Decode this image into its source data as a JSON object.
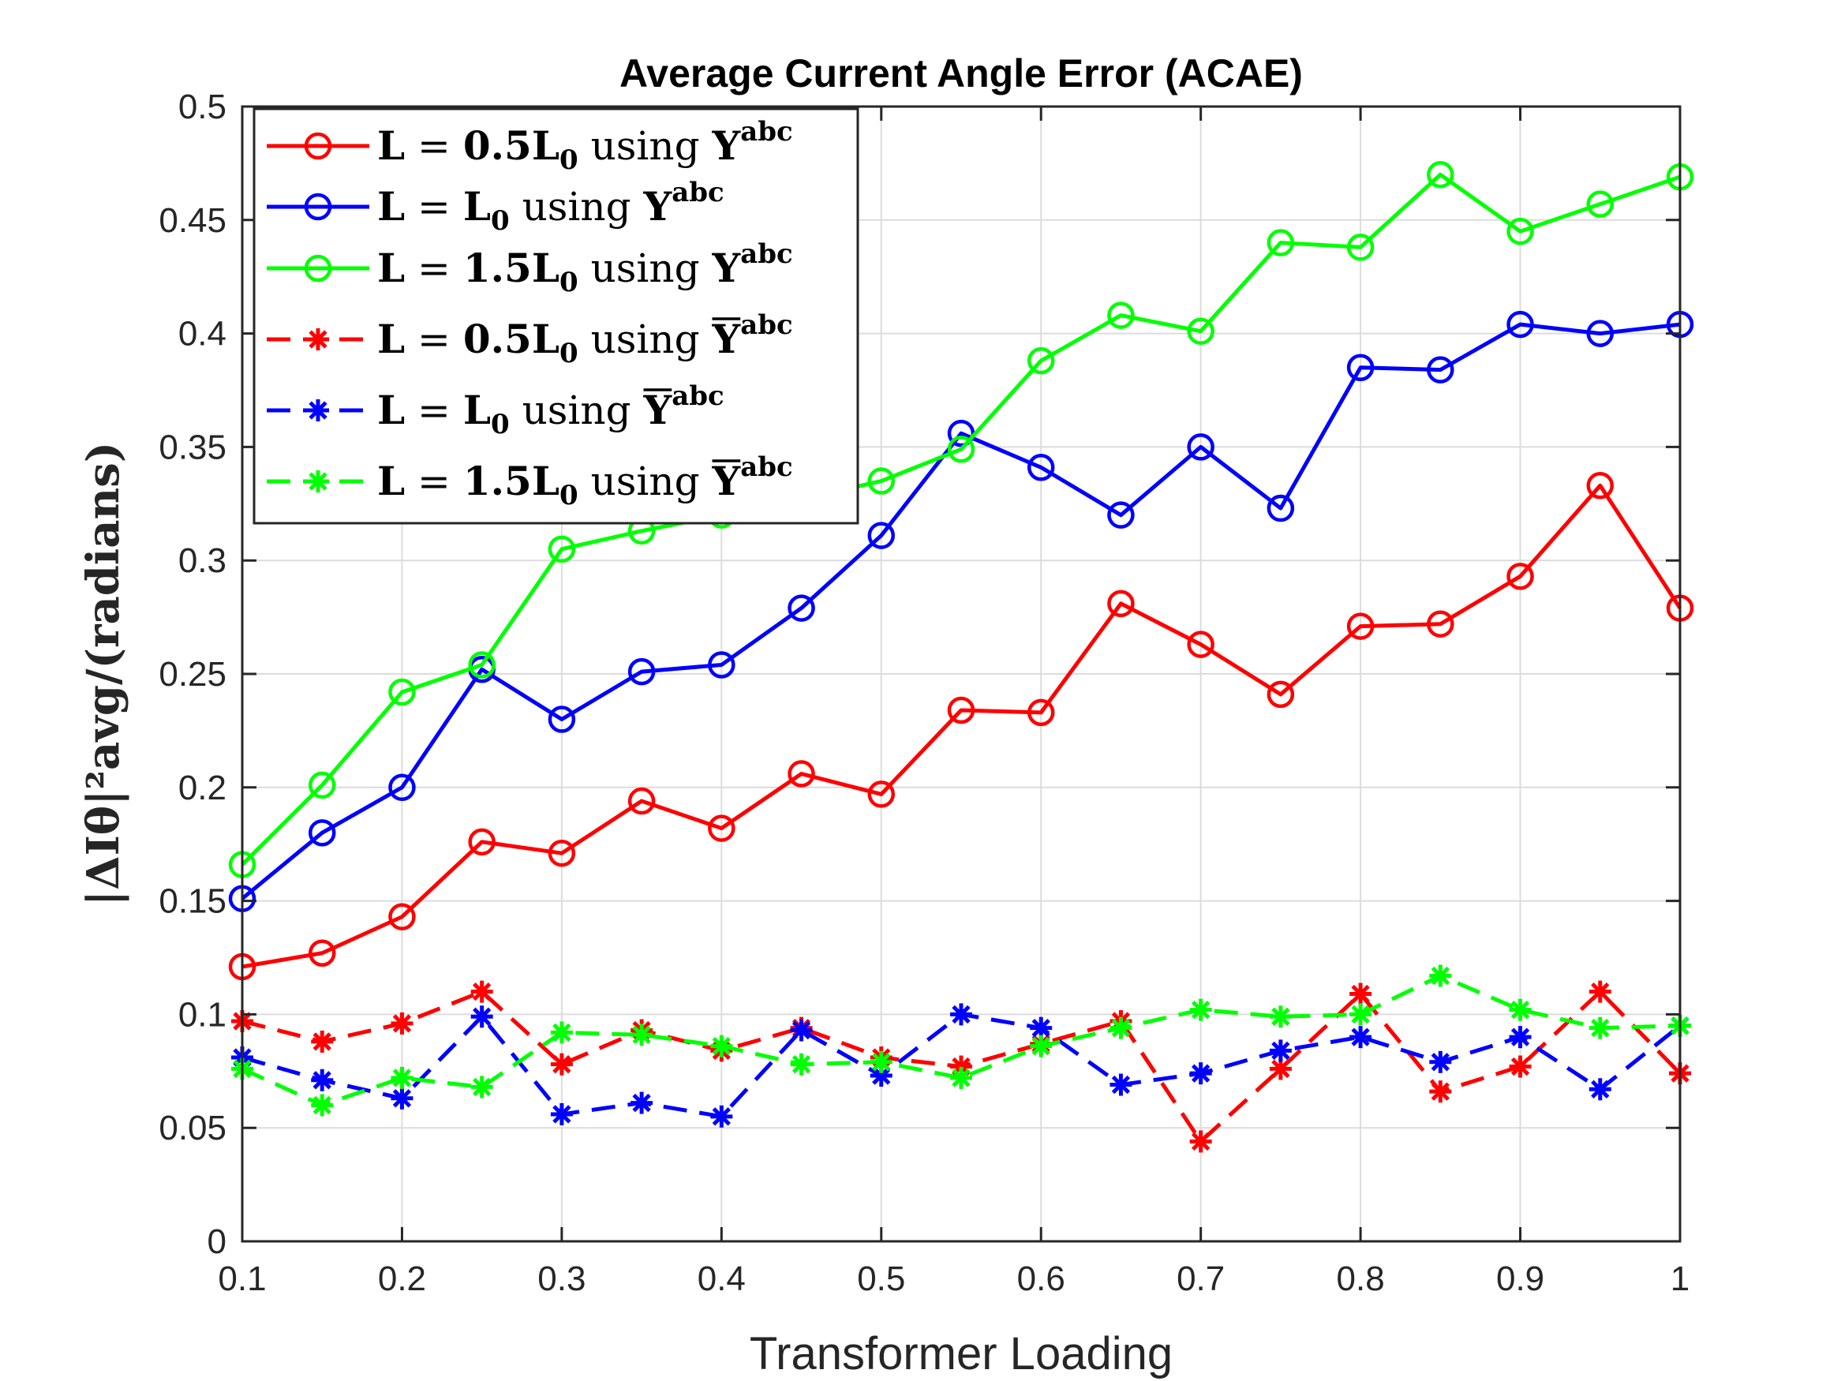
{
  "chart_data": {
    "type": "line",
    "title": "Average Current Angle Error (ACAE)",
    "xlabel": "Transformer Loading",
    "ylabel": "|ΔIθ|²avg/(radians)",
    "xlim": [
      0.1,
      1
    ],
    "ylim": [
      0,
      0.5
    ],
    "xticks": [
      "0.1",
      "0.2",
      "0.3",
      "0.4",
      "0.5",
      "0.6",
      "0.7",
      "0.8",
      "0.9",
      "1"
    ],
    "yticks": [
      "0",
      "0.05",
      "0.1",
      "0.15",
      "0.2",
      "0.25",
      "0.3",
      "0.35",
      "0.4",
      "0.45",
      "0.5"
    ],
    "grid": true,
    "legend_position": "top-left",
    "x": [
      0.1,
      0.15,
      0.2,
      0.25,
      0.3,
      0.35,
      0.4,
      0.45,
      0.5,
      0.55,
      0.6,
      0.65,
      0.7,
      0.75,
      0.8,
      0.85,
      0.9,
      0.95,
      1
    ],
    "series": [
      {
        "name": "L = 0.5L0 using Yabc",
        "color": "#ff0000",
        "style": "solid",
        "marker": "circle",
        "values": [
          0.121,
          0.127,
          0.143,
          0.176,
          0.171,
          0.194,
          0.182,
          0.206,
          0.197,
          0.234,
          0.233,
          0.281,
          0.263,
          0.241,
          0.271,
          0.272,
          0.293,
          0.333,
          0.279
        ]
      },
      {
        "name": "L = L0 using Yabc",
        "color": "#0000ff",
        "style": "solid",
        "marker": "circle",
        "values": [
          0.151,
          0.18,
          0.2,
          0.252,
          0.23,
          0.251,
          0.254,
          0.279,
          0.311,
          0.356,
          0.341,
          0.32,
          0.35,
          0.323,
          0.385,
          0.384,
          0.404,
          0.4,
          0.404
        ]
      },
      {
        "name": "L = 1.5L0 using Yabc",
        "color": "#00ff00",
        "style": "solid",
        "marker": "circle",
        "values": [
          0.166,
          0.201,
          0.242,
          0.254,
          0.305,
          0.313,
          0.32,
          0.327,
          0.335,
          0.349,
          0.388,
          0.408,
          0.401,
          0.44,
          0.438,
          0.47,
          0.445,
          0.457,
          0.469
        ]
      },
      {
        "name": "L = 0.5L0 using Ȳabc",
        "color": "#ff0000",
        "style": "dashed",
        "marker": "asterisk",
        "values": [
          0.097,
          0.088,
          0.096,
          0.11,
          0.078,
          0.093,
          0.084,
          0.094,
          0.081,
          0.077,
          0.087,
          0.097,
          0.044,
          0.076,
          0.109,
          0.066,
          0.077,
          0.11,
          0.074
        ]
      },
      {
        "name": "L = L0 using Ȳabc",
        "color": "#0000ff",
        "style": "dashed",
        "marker": "asterisk",
        "values": [
          0.081,
          0.071,
          0.063,
          0.099,
          0.056,
          0.061,
          0.055,
          0.093,
          0.073,
          0.1,
          0.094,
          0.069,
          0.074,
          0.084,
          0.09,
          0.079,
          0.09,
          0.067,
          0.095
        ]
      },
      {
        "name": "L = 1.5L0 using Ȳabc",
        "color": "#00ff00",
        "style": "dashed",
        "marker": "asterisk",
        "values": [
          0.076,
          0.06,
          0.072,
          0.068,
          0.092,
          0.091,
          0.086,
          0.078,
          0.079,
          0.072,
          0.086,
          0.094,
          0.102,
          0.099,
          0.1,
          0.117,
          0.102,
          0.094,
          0.095
        ]
      }
    ],
    "legend": [
      {
        "main": "L",
        "eq": " = ",
        "coef": "0.5",
        "L": "L",
        "sub": "0",
        "using": " using ",
        "Y": "Y",
        "sup": "abc",
        "bar": false
      },
      {
        "main": "L",
        "eq": " = ",
        "coef": "",
        "L": "L",
        "sub": "0",
        "using": " using ",
        "Y": "Y",
        "sup": "abc",
        "bar": false
      },
      {
        "main": "L",
        "eq": " = ",
        "coef": "1.5",
        "L": "L",
        "sub": "0",
        "using": " using ",
        "Y": "Y",
        "sup": "abc",
        "bar": false
      },
      {
        "main": "L",
        "eq": " = ",
        "coef": "0.5",
        "L": "L",
        "sub": "0",
        "using": " using ",
        "Y": "Y",
        "sup": "abc",
        "bar": true
      },
      {
        "main": "L",
        "eq": " = ",
        "coef": "",
        "L": "L",
        "sub": "0",
        "using": " using ",
        "Y": "Y",
        "sup": "abc",
        "bar": true
      },
      {
        "main": "L",
        "eq": " = ",
        "coef": "1.5",
        "L": "L",
        "sub": "0",
        "using": " using ",
        "Y": "Y",
        "sup": "abc",
        "bar": true
      }
    ]
  }
}
